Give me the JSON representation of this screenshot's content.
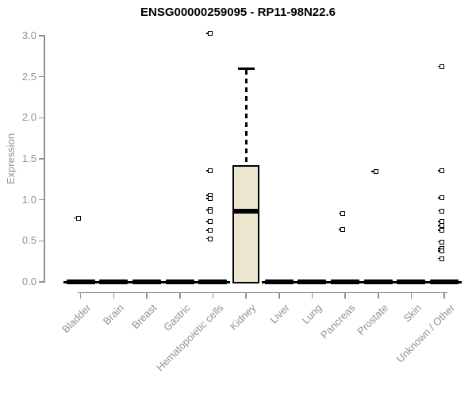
{
  "chart_data": {
    "type": "boxplot",
    "title": "ENSG00000259095 - RP11-98N22.6",
    "ylabel": "Expression",
    "xlabel": "",
    "ylim": [
      0.0,
      3.0
    ],
    "ytick_labels": [
      "0.0",
      "0.5",
      "1.0",
      "1.5",
      "2.0",
      "2.5",
      "3.0"
    ],
    "grid": false,
    "legend": "none",
    "categories": [
      "Bladder",
      "Brain",
      "Breast",
      "Gastric",
      "Hematopoietic cells",
      "Kidney",
      "Liver",
      "Lung",
      "Pancreas",
      "Prostate",
      "Skin",
      "Unknown / Other"
    ],
    "boxes": [
      {
        "category": "Bladder",
        "min": 0,
        "q1": 0,
        "median": 0,
        "q3": 0,
        "max": 0,
        "outliers": [
          0.77
        ]
      },
      {
        "category": "Brain",
        "min": 0,
        "q1": 0,
        "median": 0,
        "q3": 0,
        "max": 0,
        "outliers": []
      },
      {
        "category": "Breast",
        "min": 0,
        "q1": 0,
        "median": 0,
        "q3": 0,
        "max": 0,
        "outliers": []
      },
      {
        "category": "Gastric",
        "min": 0,
        "q1": 0,
        "median": 0,
        "q3": 0,
        "max": 0,
        "outliers": []
      },
      {
        "category": "Hematopoietic cells",
        "min": 0,
        "q1": 0,
        "median": 0,
        "q3": 0,
        "max": 0,
        "outliers": [
          3.02,
          1.35,
          1.05,
          1.01,
          0.88,
          0.86,
          0.73,
          0.62,
          0.52
        ]
      },
      {
        "category": "Kidney",
        "min": 0,
        "q1": 0,
        "median": 0.86,
        "q3": 1.42,
        "max": 2.6,
        "outliers": []
      },
      {
        "category": "Liver",
        "min": 0,
        "q1": 0,
        "median": 0,
        "q3": 0,
        "max": 0,
        "outliers": []
      },
      {
        "category": "Lung",
        "min": 0,
        "q1": 0,
        "median": 0,
        "q3": 0,
        "max": 0,
        "outliers": []
      },
      {
        "category": "Pancreas",
        "min": 0,
        "q1": 0,
        "median": 0,
        "q3": 0,
        "max": 0,
        "outliers": [
          0.83,
          0.63
        ]
      },
      {
        "category": "Prostate",
        "min": 0,
        "q1": 0,
        "median": 0,
        "q3": 0,
        "max": 0,
        "outliers": [
          1.34
        ]
      },
      {
        "category": "Skin",
        "min": 0,
        "q1": 0,
        "median": 0,
        "q3": 0,
        "max": 0,
        "outliers": []
      },
      {
        "category": "Unknown / Other",
        "min": 0,
        "q1": 0,
        "median": 0,
        "q3": 0,
        "max": 0,
        "outliers": [
          2.62,
          1.35,
          1.02,
          0.86,
          0.73,
          0.68,
          0.62,
          0.48,
          0.4,
          0.37,
          0.28
        ]
      }
    ],
    "colors": {
      "box_fill": "#ece6ce",
      "box_border": "#000000",
      "median": "#000000",
      "whisker": "#000000",
      "outlier": "#000000",
      "axis": "#919191",
      "title": "#000000"
    }
  }
}
